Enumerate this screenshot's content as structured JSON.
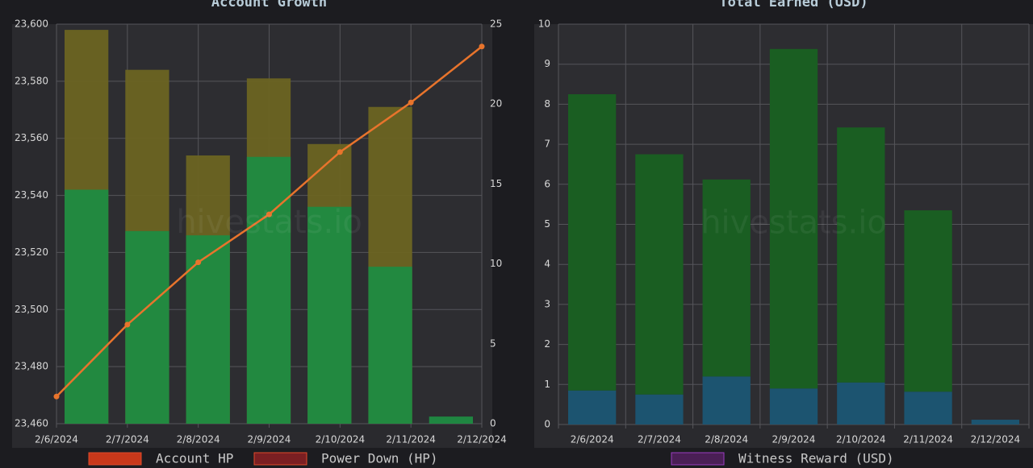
{
  "charts": [
    {
      "type": "bar",
      "title": "Account Growth",
      "watermark": "hivestats.io",
      "categories": [
        "2/6/2024",
        "2/7/2024",
        "2/8/2024",
        "2/9/2024",
        "2/10/2024",
        "2/11/2024",
        "2/12/2024"
      ],
      "series": [
        {
          "fill": "#6b6422",
          "values": [
            23598,
            23584,
            23554,
            23581,
            23558,
            23571,
            null
          ]
        },
        {
          "fill": "#1f8b42",
          "values": [
            23542,
            23527.5,
            23526,
            23553.5,
            23536,
            23515,
            23462.5
          ]
        }
      ],
      "line": {
        "color": "#e8742c",
        "axis": "y2",
        "values": [
          1.7,
          6.2,
          10.1,
          13.1,
          17,
          20.1,
          23.6
        ]
      },
      "ylim": [
        23460,
        23600
      ],
      "yticks": [
        {
          "value": 23460,
          "label": "23,460"
        },
        {
          "value": 23480,
          "label": "23,480"
        },
        {
          "value": 23500,
          "label": "23,500"
        },
        {
          "value": 23520,
          "label": "23,520"
        },
        {
          "value": 23540,
          "label": "23,540"
        },
        {
          "value": 23560,
          "label": "23,560"
        },
        {
          "value": 23580,
          "label": "23,580"
        },
        {
          "value": 23600,
          "label": "23,600"
        }
      ],
      "y2lim": [
        0,
        25
      ],
      "y2ticks": [
        0,
        5,
        10,
        15,
        20,
        25
      ],
      "legend": [
        {
          "label": "Account HP",
          "color": "#c8381a"
        },
        {
          "label": "Power Down (HP)",
          "color": "#7a1f22"
        }
      ],
      "grid": true
    },
    {
      "type": "stacked_bar",
      "title": "Total Earned (USD)",
      "watermark": "hivestats.io",
      "categories": [
        "2/6/2024",
        "2/7/2024",
        "2/8/2024",
        "2/9/2024",
        "2/10/2024",
        "2/11/2024",
        "2/12/2024"
      ],
      "series": [
        {
          "fill": "#1c5470",
          "values": [
            0.85,
            0.75,
            1.2,
            0.9,
            1.05,
            0.82,
            0.12
          ]
        },
        {
          "fill": "#1a5e22",
          "values": [
            7.4,
            6.0,
            4.92,
            8.48,
            6.37,
            4.53,
            0
          ]
        }
      ],
      "ylim": [
        0,
        10
      ],
      "yticks": [
        0,
        1,
        2,
        3,
        4,
        5,
        6,
        7,
        8,
        9,
        10
      ],
      "legend": [
        {
          "label": "Witness Reward (USD)",
          "color": "#4a1f55"
        }
      ],
      "grid": true
    }
  ]
}
